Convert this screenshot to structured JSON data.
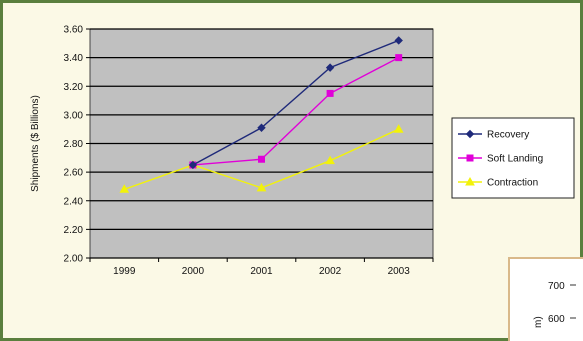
{
  "chart_data": {
    "type": "line",
    "categories": [
      "1999",
      "2000",
      "2001",
      "2002",
      "2003"
    ],
    "ylabel": "Shipments ($ Billions)",
    "ylim": [
      2.0,
      3.6
    ],
    "yticks": [
      "2.00",
      "2.20",
      "2.40",
      "2.60",
      "2.80",
      "3.00",
      "3.20",
      "3.40",
      "3.60"
    ],
    "grid": true,
    "legend_position": "right",
    "series": [
      {
        "name": "Recovery",
        "color": "#1f2a7a",
        "marker": "diamond",
        "values": [
          null,
          2.65,
          2.91,
          3.33,
          3.52
        ]
      },
      {
        "name": "Soft Landing",
        "color": "#e000d8",
        "marker": "square",
        "values": [
          null,
          2.65,
          2.69,
          3.15,
          3.4
        ]
      },
      {
        "name": "Contraction",
        "color": "#f2f20a",
        "marker": "triangle",
        "values": [
          2.48,
          2.65,
          2.49,
          2.68,
          2.9
        ]
      }
    ]
  },
  "second_chart": {
    "yticks": [
      "700",
      "600"
    ],
    "ylabel_fragment": "m)"
  }
}
